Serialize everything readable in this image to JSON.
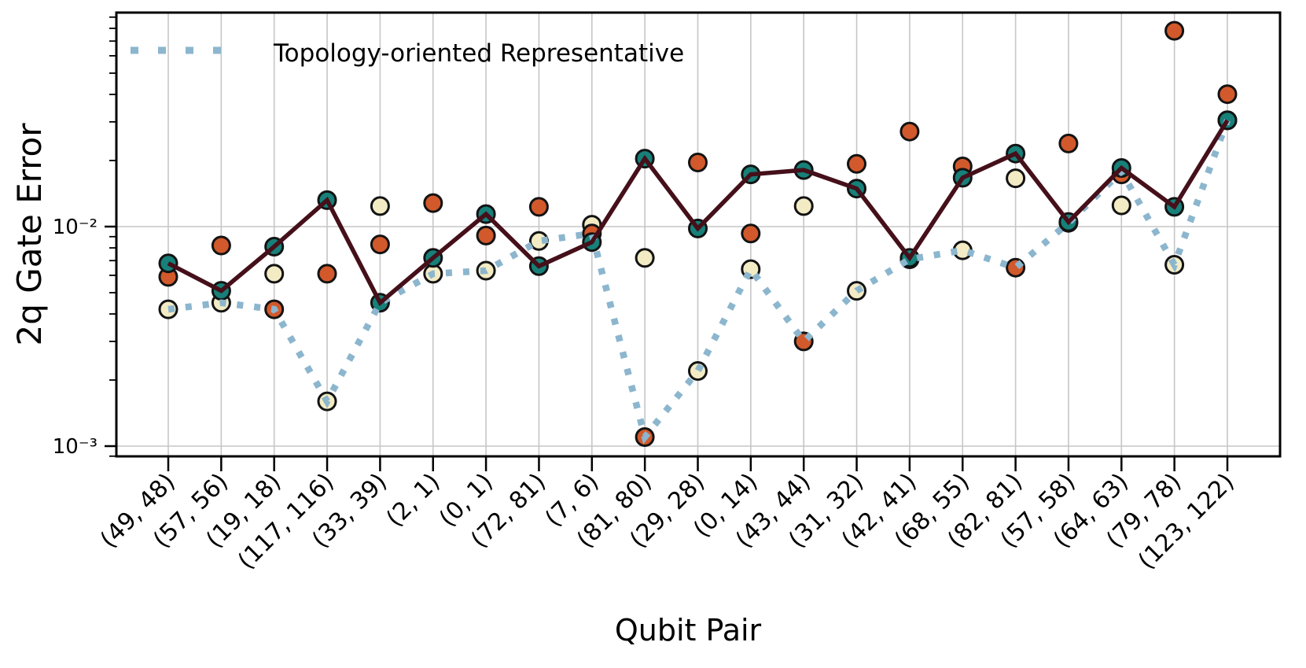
{
  "chart_data": {
    "type": "line",
    "title": "",
    "xlabel": "Qubit Pair",
    "ylabel": "2q Gate Error",
    "yscale": "log",
    "ylim": [
      0.0009,
      0.094
    ],
    "grid": true,
    "legend": {
      "label": "Topology-oriented Representative",
      "position": "upper-left"
    },
    "categories": [
      "(49, 48)",
      "(57, 56)",
      "(19, 18)",
      "(117, 116)",
      "(33, 39)",
      "(2, 1)",
      "(0, 1)",
      "(72, 81)",
      "(7, 6)",
      "(81, 80)",
      "(29, 28)",
      "(0, 14)",
      "(43, 44)",
      "(31, 32)",
      "(42, 41)",
      "(68, 55)",
      "(82, 81)",
      "(57, 58)",
      "(64, 63)",
      "(79, 78)",
      "(123, 122)"
    ],
    "y_major_ticks": [
      {
        "label": "10⁻²",
        "value": 0.01
      },
      {
        "label": "10⁻³",
        "value": 0.001
      }
    ],
    "grid_color": "#c6c6c6",
    "marker_edge_color": "#131313",
    "background": "#ffffff",
    "series": [
      {
        "name": "cream-markers",
        "marker": "circle",
        "marker_color": "#f2ebc4",
        "line": "none",
        "values": [
          0.0042,
          0.0045,
          0.0061,
          0.0016,
          0.0124,
          0.0061,
          0.0063,
          0.0086,
          0.0102,
          0.0072,
          0.0022,
          0.0064,
          0.0124,
          0.0051,
          0.0071,
          0.0078,
          0.0166,
          0.0104,
          0.0125,
          0.0067,
          0.0305
        ]
      },
      {
        "name": "orange-markers",
        "marker": "circle",
        "marker_color": "#d2592b",
        "line": "none",
        "values": [
          0.0059,
          0.0082,
          0.0042,
          0.0061,
          0.0083,
          0.0128,
          0.0091,
          0.0123,
          0.0093,
          0.0011,
          0.0196,
          0.0093,
          0.003,
          0.0193,
          0.0271,
          0.0188,
          0.0065,
          0.0239,
          0.0173,
          0.078,
          0.0401
        ]
      },
      {
        "name": "topology-oriented-representative",
        "marker": "none",
        "line": "dotted",
        "line_color": "#8cb6ce",
        "values": [
          0.0042,
          0.0045,
          0.0042,
          0.0016,
          0.0045,
          0.0061,
          0.0063,
          0.0086,
          0.0093,
          0.0011,
          0.0022,
          0.0064,
          0.003,
          0.0051,
          0.0071,
          0.0078,
          0.0065,
          0.0104,
          0.0178,
          0.0067,
          0.0305
        ]
      },
      {
        "name": "teal-markers-solid-line",
        "marker": "circle",
        "marker_color": "#178079",
        "line": "solid",
        "line_color": "#45101a",
        "values": [
          0.0068,
          0.0051,
          0.0081,
          0.0132,
          0.0045,
          0.0072,
          0.0114,
          0.0066,
          0.0085,
          0.0204,
          0.0098,
          0.0173,
          0.0181,
          0.0149,
          0.0072,
          0.0167,
          0.0215,
          0.0105,
          0.0185,
          0.0123,
          0.0305
        ]
      }
    ]
  }
}
